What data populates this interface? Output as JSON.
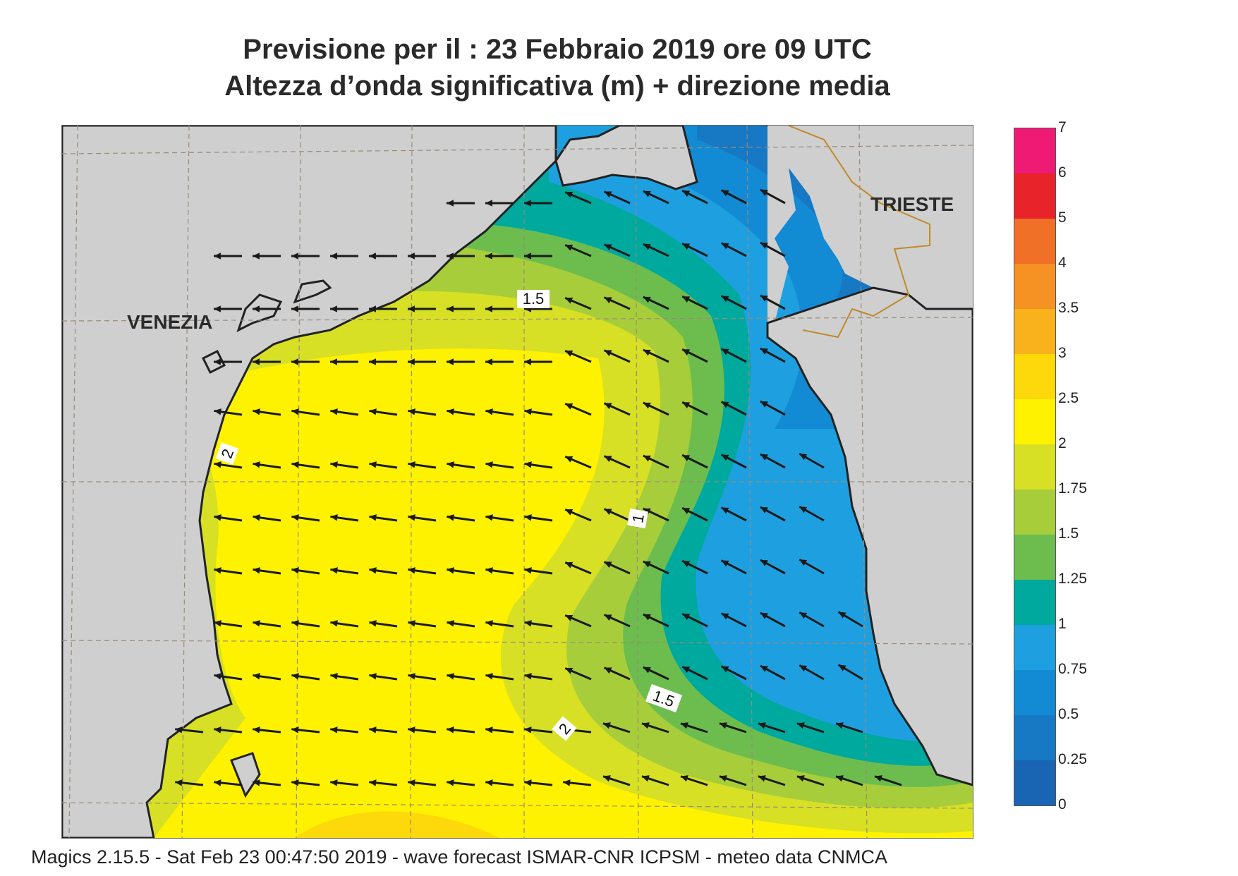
{
  "title": {
    "line1": "Previsione per il  :  23  Febbraio 2019   ore 09 UTC",
    "line2": "Altezza d’onda significativa (m) + direzione media"
  },
  "map": {
    "cities": [
      {
        "name": "VENEZIA"
      },
      {
        "name": "TRIESTE"
      }
    ],
    "contour_labels": [
      "1.5",
      "2",
      "1",
      "1.5",
      "2"
    ],
    "land_color": "#cfcfcf",
    "wave_direction": "from east-northeast toward west-southwest"
  },
  "colorbar": {
    "ticks": [
      "7",
      "6",
      "5",
      "4",
      "3.5",
      "3",
      "2.5",
      "2",
      "1.75",
      "1.5",
      "1.25",
      "1",
      "0.75",
      "0.5",
      "0.25",
      "0"
    ],
    "bins": [
      {
        "from": "6",
        "to": "7",
        "color": "#ee1a73"
      },
      {
        "from": "5",
        "to": "6",
        "color": "#e8242a"
      },
      {
        "from": "4",
        "to": "5",
        "color": "#f07028"
      },
      {
        "from": "3.5",
        "to": "4",
        "color": "#f59223"
      },
      {
        "from": "3",
        "to": "3.5",
        "color": "#f9b11c"
      },
      {
        "from": "2.5",
        "to": "3",
        "color": "#fdd80a"
      },
      {
        "from": "2",
        "to": "2.5",
        "color": "#fff200"
      },
      {
        "from": "1.75",
        "to": "2",
        "color": "#d7e024"
      },
      {
        "from": "1.5",
        "to": "1.75",
        "color": "#a8cd3a"
      },
      {
        "from": "1.25",
        "to": "1.5",
        "color": "#6cbd4e"
      },
      {
        "from": "1",
        "to": "1.25",
        "color": "#00a99d"
      },
      {
        "from": "0.75",
        "to": "1",
        "color": "#1ea0e0"
      },
      {
        "from": "0.5",
        "to": "0.75",
        "color": "#138ad4"
      },
      {
        "from": "0.25",
        "to": "0.5",
        "color": "#1778c4"
      },
      {
        "from": "0",
        "to": "0.25",
        "color": "#1a64b4"
      }
    ]
  },
  "footer": "Magics 2.15.5 - Sat Feb 23 00:47:50 2019 - wave forecast  ISMAR-CNR  ICPSM - meteo data   CNMCA"
}
